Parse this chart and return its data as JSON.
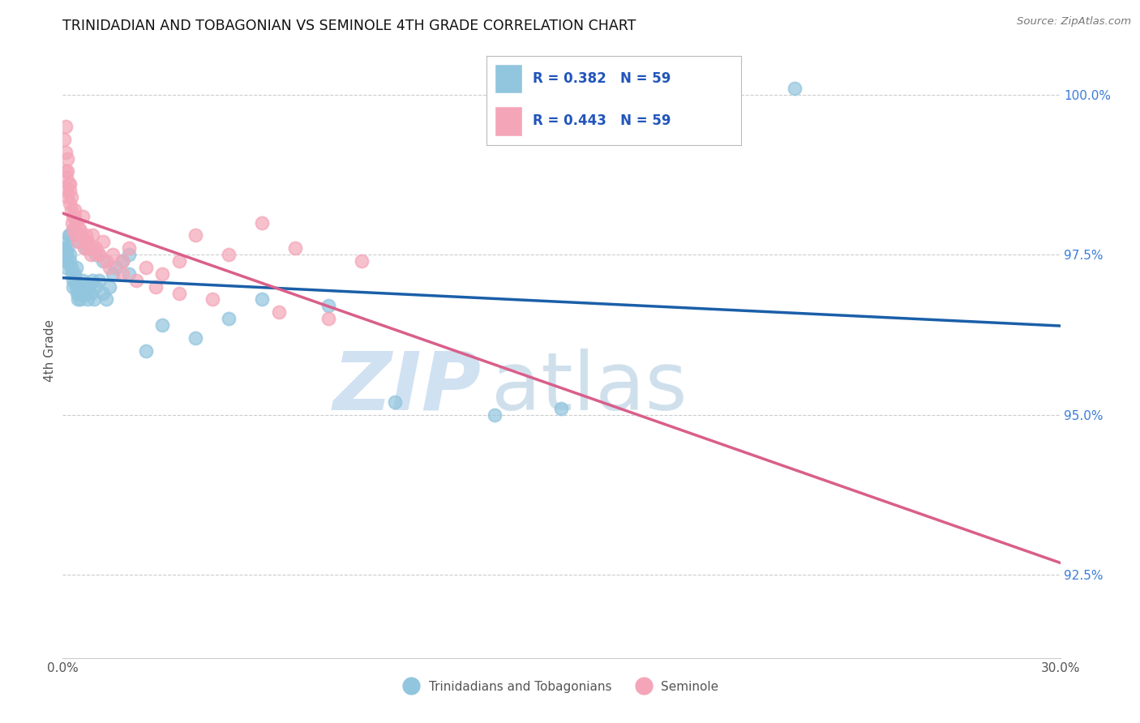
{
  "title": "TRINIDADIAN AND TOBAGONIAN VS SEMINOLE 4TH GRADE CORRELATION CHART",
  "source": "Source: ZipAtlas.com",
  "ylabel": "4th Grade",
  "x_min": 0.0,
  "x_max": 30.0,
  "y_min": 91.2,
  "y_max": 100.8,
  "y_ticks": [
    92.5,
    95.0,
    97.5,
    100.0
  ],
  "y_tick_labels": [
    "92.5%",
    "95.0%",
    "97.5%",
    "100.0%"
  ],
  "x_tick_positions": [
    0,
    5,
    10,
    15,
    20,
    25,
    30
  ],
  "x_tick_labels": [
    "0.0%",
    "",
    "",
    "",
    "",
    "",
    "30.0%"
  ],
  "legend_label_blue": "Trinidadians and Tobagonians",
  "legend_label_pink": "Seminole",
  "R_blue": 0.382,
  "N_blue": 59,
  "R_pink": 0.443,
  "N_pink": 59,
  "blue_color": "#92c5de",
  "pink_color": "#f4a6b8",
  "blue_line_color": "#1a5fa8",
  "pink_line_color": "#d95f8a",
  "watermark_zip": "ZIP",
  "watermark_atlas": "atlas",
  "background_color": "#ffffff",
  "grid_color": "#cccccc",
  "blue_x": [
    0.05,
    0.08,
    0.1,
    0.12,
    0.15,
    0.15,
    0.18,
    0.2,
    0.22,
    0.25,
    0.28,
    0.3,
    0.32,
    0.35,
    0.38,
    0.4,
    0.4,
    0.42,
    0.45,
    0.48,
    0.5,
    0.52,
    0.55,
    0.6,
    0.65,
    0.7,
    0.75,
    0.8,
    0.85,
    0.9,
    0.95,
    1.0,
    1.1,
    1.2,
    1.3,
    1.4,
    1.5,
    1.6,
    1.8,
    2.0,
    2.5,
    3.0,
    4.0,
    5.0,
    6.0,
    8.0,
    10.0,
    13.0,
    15.0,
    0.2,
    0.3,
    0.5,
    0.7,
    1.0,
    1.2,
    2.0,
    22.0,
    0.05,
    0.1
  ],
  "blue_y": [
    97.6,
    97.4,
    97.3,
    97.5,
    97.7,
    97.6,
    97.8,
    97.5,
    97.4,
    97.3,
    97.2,
    97.1,
    97.0,
    97.2,
    97.1,
    97.0,
    97.3,
    96.9,
    96.8,
    97.0,
    96.9,
    96.8,
    96.9,
    97.1,
    97.0,
    96.9,
    96.8,
    97.0,
    96.9,
    97.1,
    96.8,
    97.0,
    97.1,
    96.9,
    96.8,
    97.0,
    97.2,
    97.3,
    97.4,
    97.5,
    96.0,
    96.4,
    96.2,
    96.5,
    96.8,
    96.7,
    95.2,
    95.0,
    95.1,
    97.8,
    97.9,
    97.7,
    97.6,
    97.5,
    97.4,
    97.2,
    100.1,
    97.5,
    97.4
  ],
  "pink_x": [
    0.05,
    0.08,
    0.1,
    0.12,
    0.12,
    0.15,
    0.15,
    0.18,
    0.2,
    0.22,
    0.25,
    0.28,
    0.3,
    0.32,
    0.35,
    0.38,
    0.4,
    0.45,
    0.5,
    0.55,
    0.6,
    0.65,
    0.7,
    0.75,
    0.8,
    0.85,
    0.9,
    1.0,
    1.1,
    1.2,
    1.3,
    1.5,
    1.8,
    2.0,
    2.5,
    3.0,
    3.5,
    4.0,
    5.0,
    6.0,
    7.0,
    9.0,
    0.15,
    0.25,
    0.35,
    0.5,
    0.7,
    0.9,
    1.1,
    1.4,
    1.8,
    2.2,
    2.8,
    3.5,
    4.5,
    6.5,
    8.0,
    0.1,
    0.2
  ],
  "pink_y": [
    99.3,
    99.1,
    98.8,
    98.7,
    98.5,
    98.4,
    99.0,
    98.6,
    98.3,
    98.5,
    98.2,
    98.0,
    98.1,
    97.9,
    98.2,
    97.8,
    98.0,
    97.7,
    97.9,
    97.8,
    98.1,
    97.6,
    97.8,
    97.7,
    97.6,
    97.5,
    97.8,
    97.6,
    97.5,
    97.7,
    97.4,
    97.5,
    97.4,
    97.6,
    97.3,
    97.2,
    97.4,
    97.8,
    97.5,
    98.0,
    97.6,
    97.4,
    98.8,
    98.4,
    98.1,
    97.9,
    97.7,
    97.6,
    97.5,
    97.3,
    97.2,
    97.1,
    97.0,
    96.9,
    96.8,
    96.6,
    96.5,
    99.5,
    98.6
  ]
}
